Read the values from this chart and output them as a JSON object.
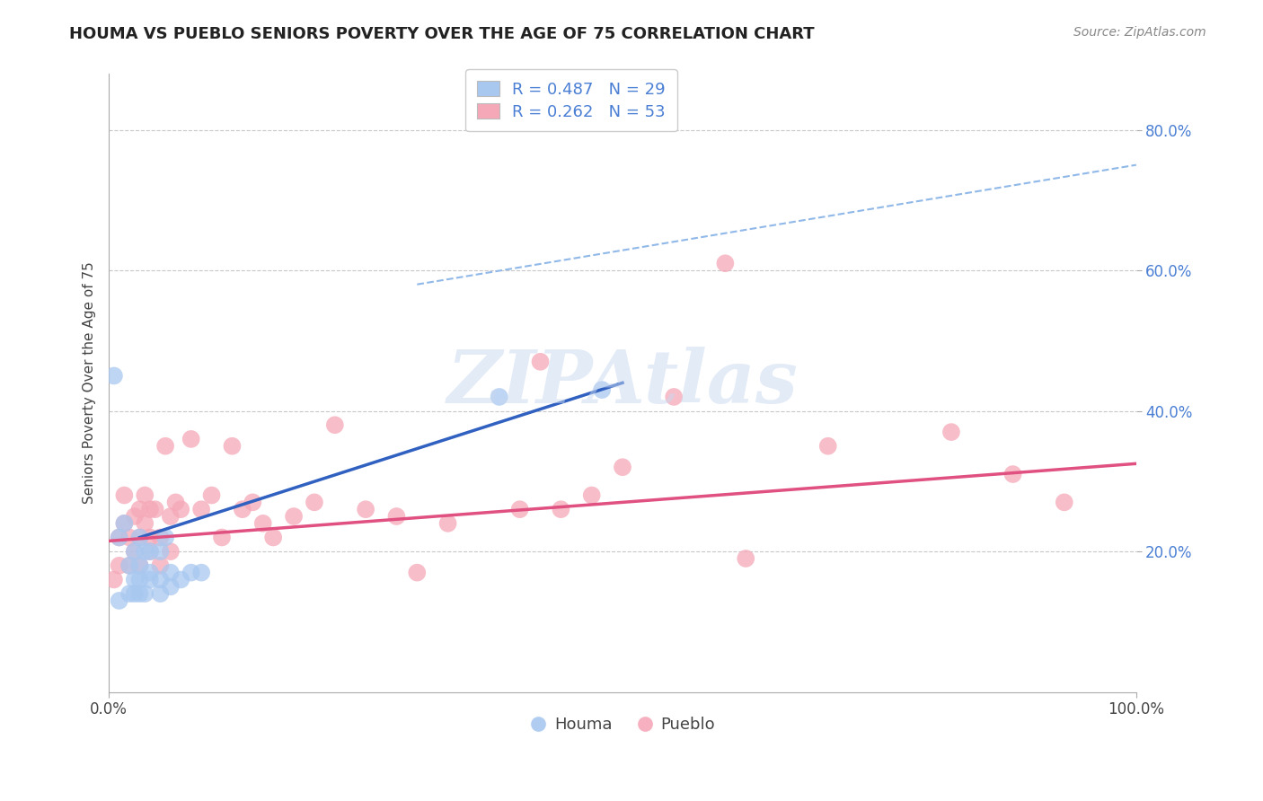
{
  "title": "HOUMA VS PUEBLO SENIORS POVERTY OVER THE AGE OF 75 CORRELATION CHART",
  "source_text": "Source: ZipAtlas.com",
  "ylabel": "Seniors Poverty Over the Age of 75",
  "watermark": "ZIPAtlas",
  "xlim": [
    0,
    1.0
  ],
  "ylim": [
    0.0,
    0.88
  ],
  "y_ticks": [
    0.2,
    0.4,
    0.6,
    0.8
  ],
  "y_tick_labels": [
    "20.0%",
    "40.0%",
    "60.0%",
    "80.0%"
  ],
  "houma_R": 0.487,
  "houma_N": 29,
  "pueblo_R": 0.262,
  "pueblo_N": 53,
  "houma_color": "#a8c8f0",
  "pueblo_color": "#f5a8b8",
  "houma_line_color": "#3060c0",
  "pueblo_line_color": "#e05080",
  "dash_line_color": "#90b8e8",
  "grid_color": "#c8c8c8",
  "background_color": "#ffffff",
  "houma_x": [
    0.005,
    0.01,
    0.01,
    0.015,
    0.02,
    0.02,
    0.025,
    0.025,
    0.025,
    0.03,
    0.03,
    0.03,
    0.03,
    0.035,
    0.035,
    0.04,
    0.04,
    0.04,
    0.05,
    0.05,
    0.05,
    0.055,
    0.06,
    0.06,
    0.07,
    0.08,
    0.09,
    0.38,
    0.48
  ],
  "houma_y": [
    0.45,
    0.22,
    0.13,
    0.24,
    0.18,
    0.14,
    0.16,
    0.2,
    0.14,
    0.16,
    0.18,
    0.22,
    0.14,
    0.2,
    0.14,
    0.17,
    0.16,
    0.2,
    0.16,
    0.2,
    0.14,
    0.22,
    0.15,
    0.17,
    0.16,
    0.17,
    0.17,
    0.42,
    0.43
  ],
  "pueblo_x": [
    0.005,
    0.01,
    0.01,
    0.015,
    0.015,
    0.02,
    0.02,
    0.025,
    0.025,
    0.03,
    0.03,
    0.03,
    0.035,
    0.035,
    0.04,
    0.04,
    0.04,
    0.045,
    0.05,
    0.05,
    0.055,
    0.06,
    0.06,
    0.065,
    0.07,
    0.08,
    0.09,
    0.1,
    0.11,
    0.12,
    0.13,
    0.14,
    0.15,
    0.16,
    0.18,
    0.2,
    0.22,
    0.25,
    0.28,
    0.3,
    0.33,
    0.4,
    0.42,
    0.44,
    0.47,
    0.5,
    0.55,
    0.6,
    0.62,
    0.7,
    0.82,
    0.88,
    0.93
  ],
  "pueblo_y": [
    0.16,
    0.22,
    0.18,
    0.24,
    0.28,
    0.22,
    0.18,
    0.25,
    0.2,
    0.22,
    0.18,
    0.26,
    0.24,
    0.28,
    0.22,
    0.26,
    0.2,
    0.26,
    0.18,
    0.22,
    0.35,
    0.25,
    0.2,
    0.27,
    0.26,
    0.36,
    0.26,
    0.28,
    0.22,
    0.35,
    0.26,
    0.27,
    0.24,
    0.22,
    0.25,
    0.27,
    0.38,
    0.26,
    0.25,
    0.17,
    0.24,
    0.26,
    0.47,
    0.26,
    0.28,
    0.32,
    0.42,
    0.61,
    0.19,
    0.35,
    0.37,
    0.31,
    0.27
  ],
  "blue_line_start_x": 0.03,
  "blue_line_start_y": 0.22,
  "blue_line_end_x": 0.5,
  "blue_line_end_y": 0.44,
  "pink_line_start_x": 0.0,
  "pink_line_start_y": 0.215,
  "pink_line_end_x": 1.0,
  "pink_line_end_y": 0.325,
  "dash_line_start_x": 0.3,
  "dash_line_start_y": 0.58,
  "dash_line_end_x": 1.0,
  "dash_line_end_y": 0.75
}
